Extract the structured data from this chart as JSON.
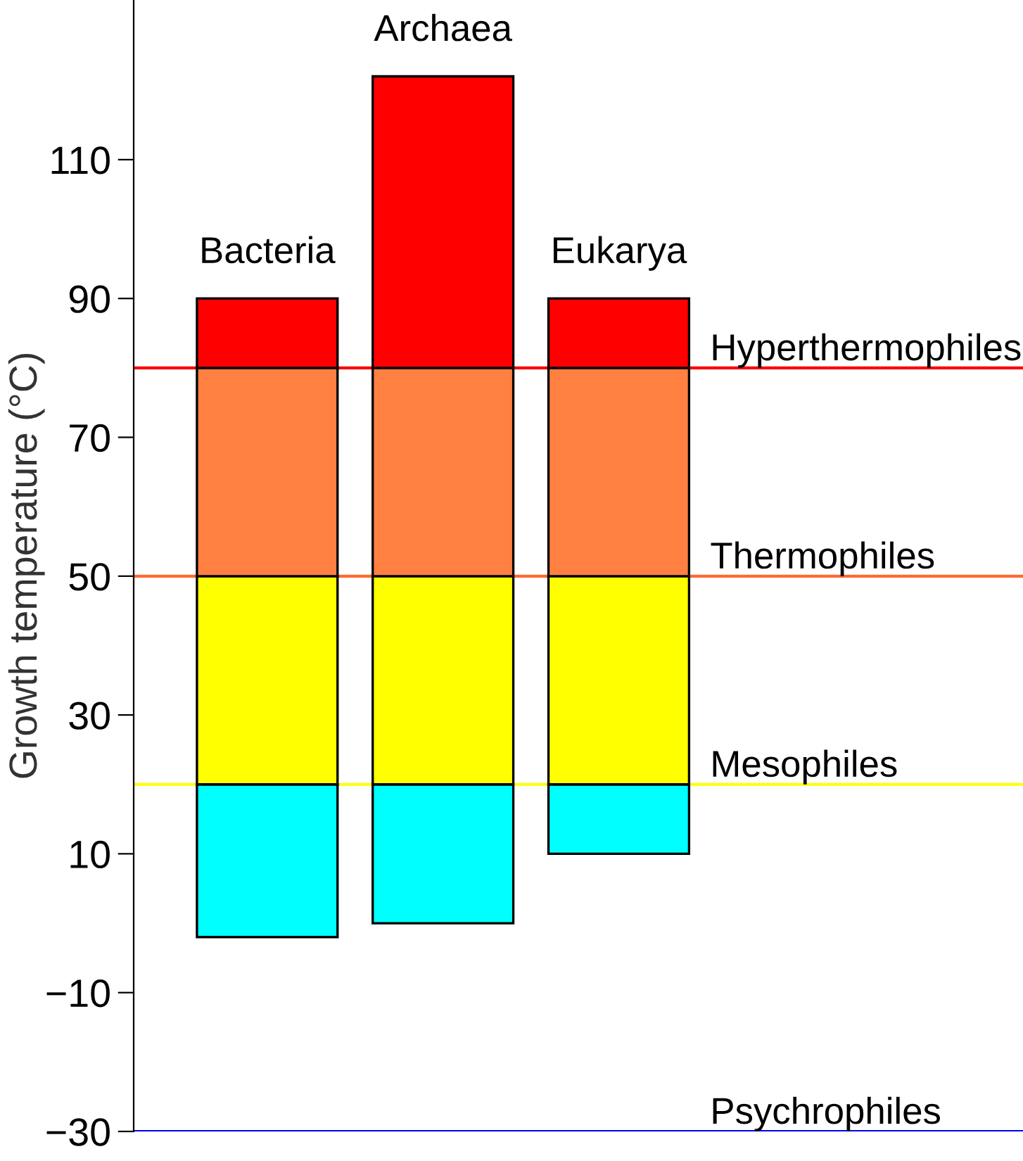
{
  "chart_data": {
    "type": "bar",
    "ylabel": "Growth temperature (°C)",
    "categories": [
      "Bacteria",
      "Archaea",
      "Eukarya"
    ],
    "series": [
      {
        "color": "#00ffff",
        "base": [
          -2,
          0,
          10
        ],
        "values": [
          22,
          20,
          10
        ]
      },
      {
        "color": "#ffff00",
        "base": [
          20,
          20,
          20
        ],
        "values": [
          30,
          30,
          30
        ]
      },
      {
        "color": "#ff8040",
        "base": [
          50,
          50,
          50
        ],
        "values": [
          30,
          30,
          30
        ]
      },
      {
        "color": "#ff0000",
        "base": [
          80,
          80,
          80
        ],
        "values": [
          10,
          42,
          10
        ]
      }
    ],
    "ylim": [
      -30,
      133
    ],
    "yticks": [
      {
        "value": -30,
        "label": "−30"
      },
      {
        "value": -10,
        "label": "−10"
      },
      10,
      30,
      50,
      70,
      90,
      110
    ],
    "ref_lines": [
      {
        "axis": "y",
        "value": 80,
        "label": "Hyperthermophiles",
        "color": "#ff0000"
      },
      {
        "axis": "y",
        "value": 50,
        "label": "Thermophiles",
        "color": "#ff6a33"
      },
      {
        "axis": "y",
        "value": 20,
        "label": "Mesophiles",
        "color": "#ffff00"
      },
      {
        "axis": "y",
        "value": -30,
        "label": "Psychrophiles",
        "color": "#0000ff"
      }
    ],
    "tick_labels": "y",
    "grid": false,
    "legend": false
  }
}
